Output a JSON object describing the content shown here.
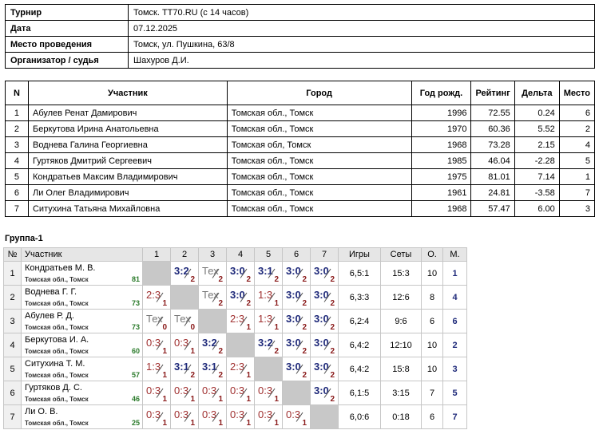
{
  "info": [
    {
      "label": "Турнир",
      "value": "Томск. TT70.RU (с 14 часов)"
    },
    {
      "label": "Дата",
      "value": "07.12.2025"
    },
    {
      "label": "Место проведения",
      "value": "Томск, ул. Пушкина, 63/8"
    },
    {
      "label": "Организатор / судья",
      "value": "Шахуров Д.И."
    }
  ],
  "participants": {
    "headers": [
      "N",
      "Участник",
      "Город",
      "Год рожд.",
      "Рейтинг",
      "Дельта",
      "Место"
    ],
    "rows": [
      [
        "1",
        "Абулев Ренат Дамирович",
        "Томская обл., Томск",
        "1996",
        "72.55",
        "0.24",
        "6"
      ],
      [
        "2",
        "Беркутова Ирина Анатольевна",
        "Томская обл., Томск",
        "1970",
        "60.36",
        "5.52",
        "2"
      ],
      [
        "3",
        "Воднева Галина Георгиевна",
        "Томская обл, Томск",
        "1968",
        "73.28",
        "2.15",
        "4"
      ],
      [
        "4",
        "Гуртяков Дмитрий Сергеевич",
        "Томская обл., Томск",
        "1985",
        "46.04",
        "-2.28",
        "5"
      ],
      [
        "5",
        "Кондратьев Максим Владимирович",
        "Томская обл., Томск",
        "1975",
        "81.01",
        "7.14",
        "1"
      ],
      [
        "6",
        "Ли Олег Владимирович",
        "Томская обл., Томск",
        "1961",
        "24.81",
        "-3.58",
        "7"
      ],
      [
        "7",
        "Ситухина Татьяна Михайловна",
        "Томская обл., Томск",
        "1968",
        "57.47",
        "6.00",
        "3"
      ]
    ]
  },
  "group": {
    "title": "Группа-1",
    "headers": {
      "num": "№",
      "player": "Участник",
      "cols": [
        "1",
        "2",
        "3",
        "4",
        "5",
        "6",
        "7"
      ],
      "games": "Игры",
      "sets": "Сеты",
      "points": "О.",
      "place": "М."
    },
    "rows": [
      {
        "num": "1",
        "name": "Кондратьев М. В.",
        "city": "Томская обл., Томск",
        "rating": "81",
        "cells": [
          null,
          [
            "3:2",
            "2",
            "win"
          ],
          [
            "Тех",
            "2",
            "tech"
          ],
          [
            "3:0",
            "2",
            "win"
          ],
          [
            "3:1",
            "2",
            "win"
          ],
          [
            "3:0",
            "2",
            "win"
          ],
          [
            "3:0",
            "2",
            "win"
          ]
        ],
        "games": "6,5:1",
        "sets": "15:3",
        "points": "10",
        "place": "1"
      },
      {
        "num": "2",
        "name": "Воднева Г. Г.",
        "city": "Томская обл., Томск",
        "rating": "73",
        "cells": [
          [
            "2:3",
            "1",
            "loss"
          ],
          null,
          [
            "Тех",
            "2",
            "tech"
          ],
          [
            "3:0",
            "2",
            "win"
          ],
          [
            "1:3",
            "1",
            "loss"
          ],
          [
            "3:0",
            "2",
            "win"
          ],
          [
            "3:0",
            "2",
            "win"
          ]
        ],
        "games": "6,3:3",
        "sets": "12:6",
        "points": "8",
        "place": "4"
      },
      {
        "num": "3",
        "name": "Абулев Р. Д.",
        "city": "Томская обл., Томск",
        "rating": "73",
        "cells": [
          [
            "Тех",
            "0",
            "tech"
          ],
          [
            "Тех",
            "0",
            "tech"
          ],
          null,
          [
            "2:3",
            "1",
            "loss"
          ],
          [
            "1:3",
            "1",
            "loss"
          ],
          [
            "3:0",
            "2",
            "win"
          ],
          [
            "3:0",
            "2",
            "win"
          ]
        ],
        "games": "6,2:4",
        "sets": "9:6",
        "points": "6",
        "place": "6"
      },
      {
        "num": "4",
        "name": "Беркутова И. А.",
        "city": "Томская обл., Томск",
        "rating": "60",
        "cells": [
          [
            "0:3",
            "1",
            "loss"
          ],
          [
            "0:3",
            "1",
            "loss"
          ],
          [
            "3:2",
            "2",
            "win"
          ],
          null,
          [
            "3:2",
            "2",
            "win"
          ],
          [
            "3:0",
            "2",
            "win"
          ],
          [
            "3:0",
            "2",
            "win"
          ]
        ],
        "games": "6,4:2",
        "sets": "12:10",
        "points": "10",
        "place": "2"
      },
      {
        "num": "5",
        "name": "Ситухина Т. М.",
        "city": "Томская обл., Томск",
        "rating": "57",
        "cells": [
          [
            "1:3",
            "1",
            "loss"
          ],
          [
            "3:1",
            "2",
            "win"
          ],
          [
            "3:1",
            "2",
            "win"
          ],
          [
            "2:3",
            "1",
            "loss"
          ],
          null,
          [
            "3:0",
            "2",
            "win"
          ],
          [
            "3:0",
            "2",
            "win"
          ]
        ],
        "games": "6,4:2",
        "sets": "15:8",
        "points": "10",
        "place": "3"
      },
      {
        "num": "6",
        "name": "Гуртяков Д. С.",
        "city": "Томская обл., Томск",
        "rating": "46",
        "cells": [
          [
            "0:3",
            "1",
            "loss"
          ],
          [
            "0:3",
            "1",
            "loss"
          ],
          [
            "0:3",
            "1",
            "loss"
          ],
          [
            "0:3",
            "1",
            "loss"
          ],
          [
            "0:3",
            "1",
            "loss"
          ],
          null,
          [
            "3:0",
            "2",
            "win"
          ]
        ],
        "games": "6,1:5",
        "sets": "3:15",
        "points": "7",
        "place": "5"
      },
      {
        "num": "7",
        "name": "Ли О. В.",
        "city": "Томская обл., Томск",
        "rating": "25",
        "cells": [
          [
            "0:3",
            "1",
            "loss"
          ],
          [
            "0:3",
            "1",
            "loss"
          ],
          [
            "0:3",
            "1",
            "loss"
          ],
          [
            "0:3",
            "1",
            "loss"
          ],
          [
            "0:3",
            "1",
            "loss"
          ],
          [
            "0:3",
            "1",
            "loss"
          ],
          null
        ],
        "games": "6,0:6",
        "sets": "0:18",
        "points": "6",
        "place": "7"
      }
    ]
  }
}
